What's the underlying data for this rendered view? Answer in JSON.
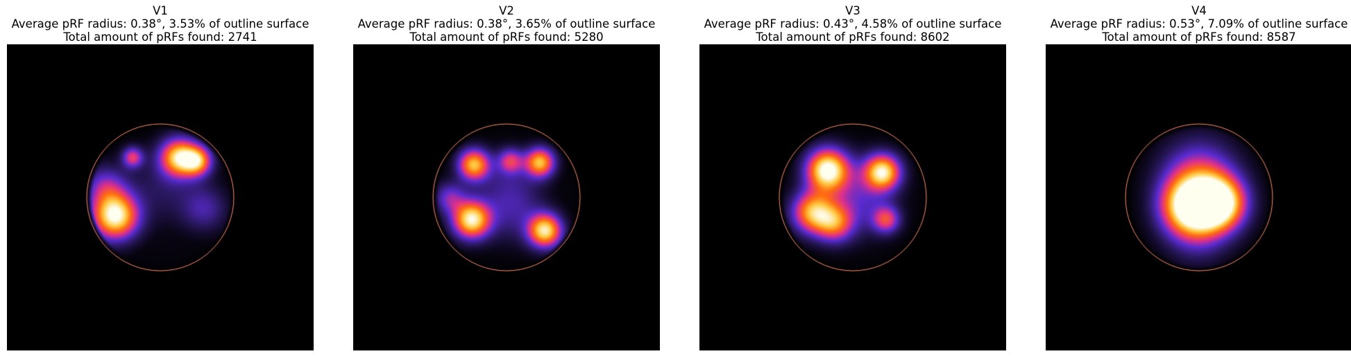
{
  "chart_data": [
    {
      "type": "heatmap",
      "title": "V1",
      "subtitle_lines": [
        "Average pRF radius: 0.38°, 3.53% of outline surface",
        "Total amount of pRFs found: 2741"
      ],
      "hotspots": [
        {
          "x": -0.62,
          "y": -0.25,
          "intensity": 1.0,
          "spread": 0.22
        },
        {
          "x": 0.25,
          "y": 0.55,
          "intensity": 0.85,
          "spread": 0.18
        },
        {
          "x": 0.5,
          "y": 0.5,
          "intensity": 0.7,
          "spread": 0.14
        },
        {
          "x": -0.38,
          "y": 0.55,
          "intensity": 0.5,
          "spread": 0.1
        },
        {
          "x": -0.75,
          "y": 0.15,
          "intensity": 0.35,
          "spread": 0.2
        },
        {
          "x": 0.6,
          "y": -0.15,
          "intensity": 0.25,
          "spread": 0.22
        },
        {
          "x": 0.05,
          "y": 0.15,
          "intensity": 0.15,
          "spread": 0.35
        }
      ]
    },
    {
      "type": "heatmap",
      "title": "V2",
      "subtitle_lines": [
        "Average pRF radius: 0.38°, 3.65% of outline surface",
        "Total amount of pRFs found: 5280"
      ],
      "hotspots": [
        {
          "x": -0.45,
          "y": 0.45,
          "intensity": 0.8,
          "spread": 0.15
        },
        {
          "x": 0.45,
          "y": 0.48,
          "intensity": 0.8,
          "spread": 0.14
        },
        {
          "x": 0.05,
          "y": 0.5,
          "intensity": 0.45,
          "spread": 0.12
        },
        {
          "x": -0.48,
          "y": -0.3,
          "intensity": 0.95,
          "spread": 0.18
        },
        {
          "x": 0.52,
          "y": -0.45,
          "intensity": 0.9,
          "spread": 0.16
        },
        {
          "x": -0.78,
          "y": 0.0,
          "intensity": 0.35,
          "spread": 0.15
        },
        {
          "x": 0.1,
          "y": -0.2,
          "intensity": 0.2,
          "spread": 0.3
        },
        {
          "x": 0.0,
          "y": 0.2,
          "intensity": 0.15,
          "spread": 0.3
        }
      ]
    },
    {
      "type": "heatmap",
      "title": "V3",
      "subtitle_lines": [
        "Average pRF radius: 0.43°, 4.58% of outline surface",
        "Total amount of pRFs found: 8602"
      ],
      "hotspots": [
        {
          "x": -0.35,
          "y": 0.38,
          "intensity": 1.0,
          "spread": 0.2
        },
        {
          "x": 0.4,
          "y": 0.35,
          "intensity": 0.9,
          "spread": 0.17
        },
        {
          "x": -0.55,
          "y": -0.2,
          "intensity": 0.75,
          "spread": 0.2
        },
        {
          "x": -0.25,
          "y": -0.35,
          "intensity": 0.55,
          "spread": 0.18
        },
        {
          "x": 0.45,
          "y": -0.3,
          "intensity": 0.5,
          "spread": 0.13
        },
        {
          "x": 0.05,
          "y": 0.0,
          "intensity": 0.3,
          "spread": 0.35
        }
      ]
    },
    {
      "type": "heatmap",
      "title": "V4",
      "subtitle_lines": [
        "Average pRF radius: 0.53°, 7.09% of outline surface",
        "Total amount of pRFs found: 8587"
      ],
      "hotspots": [
        {
          "x": -0.12,
          "y": -0.12,
          "intensity": 1.0,
          "spread": 0.28
        },
        {
          "x": 0.28,
          "y": -0.08,
          "intensity": 0.95,
          "spread": 0.25
        },
        {
          "x": 0.0,
          "y": 0.3,
          "intensity": 0.45,
          "spread": 0.35
        },
        {
          "x": 0.0,
          "y": -0.5,
          "intensity": 0.2,
          "spread": 0.3
        }
      ]
    }
  ],
  "colors": {
    "background": "#000000",
    "outline": "#ff9070",
    "colormap": [
      "#000000",
      "#2a1860",
      "#5a2bd0",
      "#e0308a",
      "#ff6a10",
      "#ffc840",
      "#fffff0"
    ]
  }
}
